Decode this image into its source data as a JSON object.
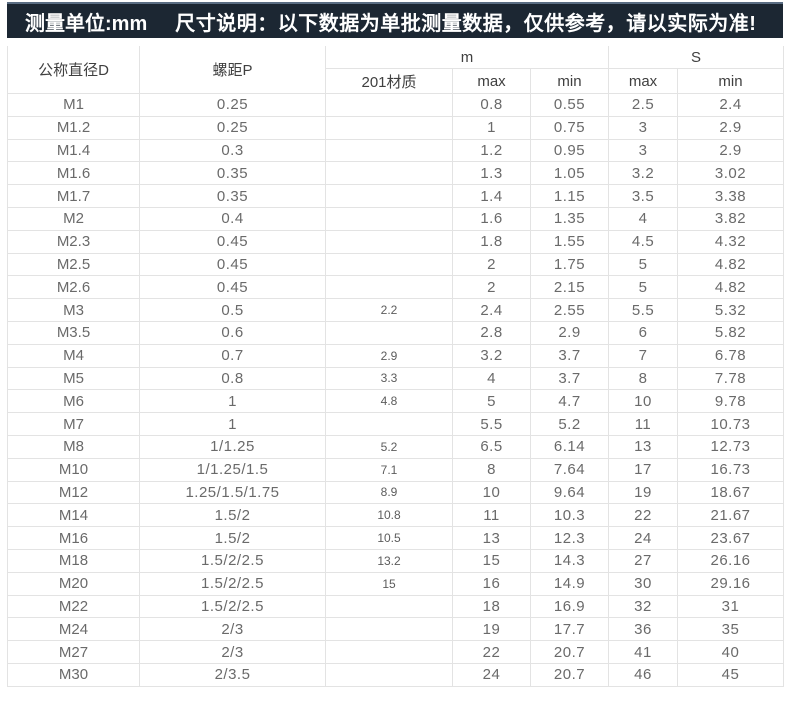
{
  "banner": {
    "unit_label": "测量单位:mm",
    "note": "尺寸说明：以下数据为单批测量数据，仅供参考，请以实际为准!"
  },
  "table": {
    "headers": {
      "diameter": "公称直径D",
      "pitch": "螺距P",
      "material": "201材质",
      "group_m": "m",
      "group_s": "S",
      "max": "max",
      "min": "min"
    },
    "column_keys": [
      "diameter",
      "pitch",
      "material-201",
      "m-max",
      "m-min",
      "s-max",
      "s-min"
    ],
    "rows": [
      [
        "M1",
        "0.25",
        "",
        "0.8",
        "0.55",
        "2.5",
        "2.4"
      ],
      [
        "M1.2",
        "0.25",
        "",
        "1",
        "0.75",
        "3",
        "2.9"
      ],
      [
        "M1.4",
        "0.3",
        "",
        "1.2",
        "0.95",
        "3",
        "2.9"
      ],
      [
        "M1.6",
        "0.35",
        "",
        "1.3",
        "1.05",
        "3.2",
        "3.02"
      ],
      [
        "M1.7",
        "0.35",
        "",
        "1.4",
        "1.15",
        "3.5",
        "3.38"
      ],
      [
        "M2",
        "0.4",
        "",
        "1.6",
        "1.35",
        "4",
        "3.82"
      ],
      [
        "M2.3",
        "0.45",
        "",
        "1.8",
        "1.55",
        "4.5",
        "4.32"
      ],
      [
        "M2.5",
        "0.45",
        "",
        "2",
        "1.75",
        "5",
        "4.82"
      ],
      [
        "M2.6",
        "0.45",
        "",
        "2",
        "2.15",
        "5",
        "4.82"
      ],
      [
        "M3",
        "0.5",
        "2.2",
        "2.4",
        "2.55",
        "5.5",
        "5.32"
      ],
      [
        "M3.5",
        "0.6",
        "",
        "2.8",
        "2.9",
        "6",
        "5.82"
      ],
      [
        "M4",
        "0.7",
        "2.9",
        "3.2",
        "3.7",
        "7",
        "6.78"
      ],
      [
        "M5",
        "0.8",
        "3.3",
        "4",
        "3.7",
        "8",
        "7.78"
      ],
      [
        "M6",
        "1",
        "4.8",
        "5",
        "4.7",
        "10",
        "9.78"
      ],
      [
        "M7",
        "1",
        "",
        "5.5",
        "5.2",
        "11",
        "10.73"
      ],
      [
        "M8",
        "1/1.25",
        "5.2",
        "6.5",
        "6.14",
        "13",
        "12.73"
      ],
      [
        "M10",
        "1/1.25/1.5",
        "7.1",
        "8",
        "7.64",
        "17",
        "16.73"
      ],
      [
        "M12",
        "1.25/1.5/1.75",
        "8.9",
        "10",
        "9.64",
        "19",
        "18.67"
      ],
      [
        "M14",
        "1.5/2",
        "10.8",
        "11",
        "10.3",
        "22",
        "21.67"
      ],
      [
        "M16",
        "1.5/2",
        "10.5",
        "13",
        "12.3",
        "24",
        "23.67"
      ],
      [
        "M18",
        "1.5/2/2.5",
        "13.2",
        "15",
        "14.3",
        "27",
        "26.16"
      ],
      [
        "M20",
        "1.5/2/2.5",
        "15",
        "16",
        "14.9",
        "30",
        "29.16"
      ],
      [
        "M22",
        "1.5/2/2.5",
        "",
        "18",
        "16.9",
        "32",
        "31"
      ],
      [
        "M24",
        "2/3",
        "",
        "19",
        "17.7",
        "36",
        "35"
      ],
      [
        "M27",
        "2/3",
        "",
        "22",
        "20.7",
        "41",
        "40"
      ],
      [
        "M30",
        "2/3.5",
        "",
        "24",
        "20.7",
        "46",
        "45"
      ]
    ]
  },
  "colors": {
    "banner_bg": "#1c2733",
    "banner_top": "#5a6d83",
    "banner_text": "#ffffff",
    "grid": "#e3e3e3",
    "header_text": "#404040",
    "body_text": "#6a6a6a"
  }
}
